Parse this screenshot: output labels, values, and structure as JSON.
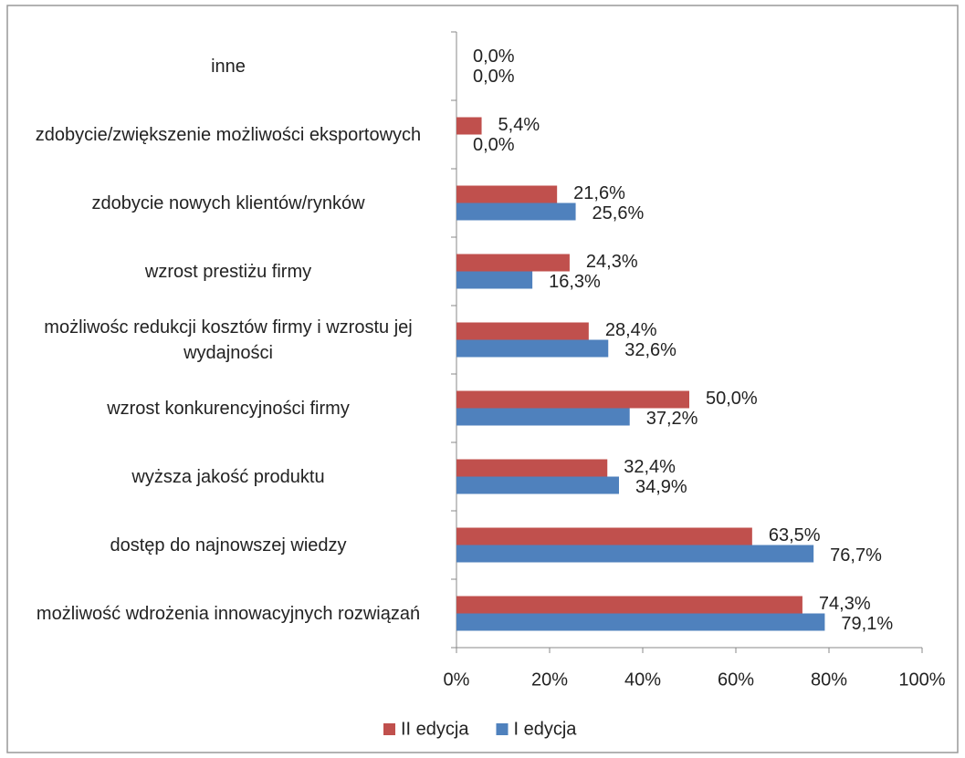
{
  "chart_data": {
    "type": "barh",
    "categories": [
      "inne",
      "zdobycie/zwiększenie możliwości eksportowych",
      "zdobycie nowych klientów/rynków",
      "wzrost prestiżu firmy",
      "możliwośc redukcji kosztów firmy i wzrostu jej wydajności",
      "wzrost konkurencyjności firmy",
      "wyższa jakość produktu",
      "dostęp do najnowszej wiedzy",
      "możliwość wdrożenia innowacyjnych rozwiązań"
    ],
    "series": [
      {
        "name": "II edycja",
        "color": "#c0504d",
        "values": [
          0,
          5.4,
          21.6,
          24.3,
          28.4,
          50.0,
          32.4,
          63.5,
          74.3
        ],
        "value_labels": [
          "0,0%",
          "5,4%",
          "21,6%",
          "24,3%",
          "28,4%",
          "50,0%",
          "32,4%",
          "63,5%",
          "74,3%"
        ]
      },
      {
        "name": "I edycja",
        "color": "#4f81bd",
        "values": [
          0,
          0,
          25.6,
          16.3,
          32.6,
          37.2,
          34.9,
          76.7,
          79.1
        ],
        "value_labels": [
          "0,0%",
          "0,0%",
          "25,6%",
          "16,3%",
          "32,6%",
          "37,2%",
          "34,9%",
          "76,7%",
          "79,1%"
        ]
      }
    ],
    "xlim": [
      0,
      100
    ],
    "xticks": [
      {
        "value": 0,
        "label": "0%"
      },
      {
        "value": 20,
        "label": "20%"
      },
      {
        "value": 40,
        "label": "40%"
      },
      {
        "value": 60,
        "label": "60%"
      },
      {
        "value": 80,
        "label": "80%"
      },
      {
        "value": 100,
        "label": "100%"
      }
    ],
    "grid": false,
    "legend": "bottom"
  }
}
